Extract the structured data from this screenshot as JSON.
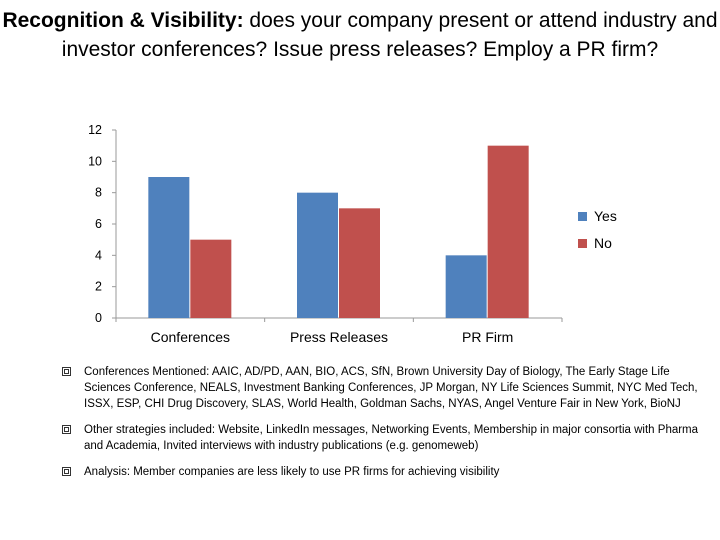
{
  "title": {
    "bold": "Recognition & Visibility:",
    "rest": " does your company present or attend industry and investor conferences? Issue press releases? Employ a PR firm?"
  },
  "chart_data": {
    "type": "bar",
    "categories": [
      "Conferences",
      "Press Releases",
      "PR Firm"
    ],
    "series": [
      {
        "name": "Yes",
        "values": [
          9,
          8,
          4
        ],
        "color": "#4f81bd"
      },
      {
        "name": "No",
        "values": [
          5,
          7,
          11
        ],
        "color": "#c0504d"
      }
    ],
    "ylim": [
      0,
      12
    ],
    "yticks": [
      "0",
      "2",
      "4",
      "6",
      "8",
      "10",
      "12"
    ],
    "legend": "right",
    "title": "",
    "xlabel": "",
    "ylabel": ""
  },
  "bullets": [
    "Conferences Mentioned: AAIC, AD/PD, AAN, BIO, ACS, SfN, Brown University Day of Biology, The Early Stage Life Sciences Conference, NEALS, Investment Banking Conferences, JP Morgan, NY Life Sciences Summit, NYC Med Tech, ISSX, ESP, CHI Drug Discovery, SLAS, World Health, Goldman Sachs, NYAS, Angel Venture Fair in New York, BioNJ",
    "Other strategies included: Website, LinkedIn messages, Networking Events, Membership in major consortia with Pharma and Academia, Invited interviews with industry publications (e.g. genomeweb)",
    "Analysis: Member companies are less likely to use PR firms for achieving visibility"
  ]
}
